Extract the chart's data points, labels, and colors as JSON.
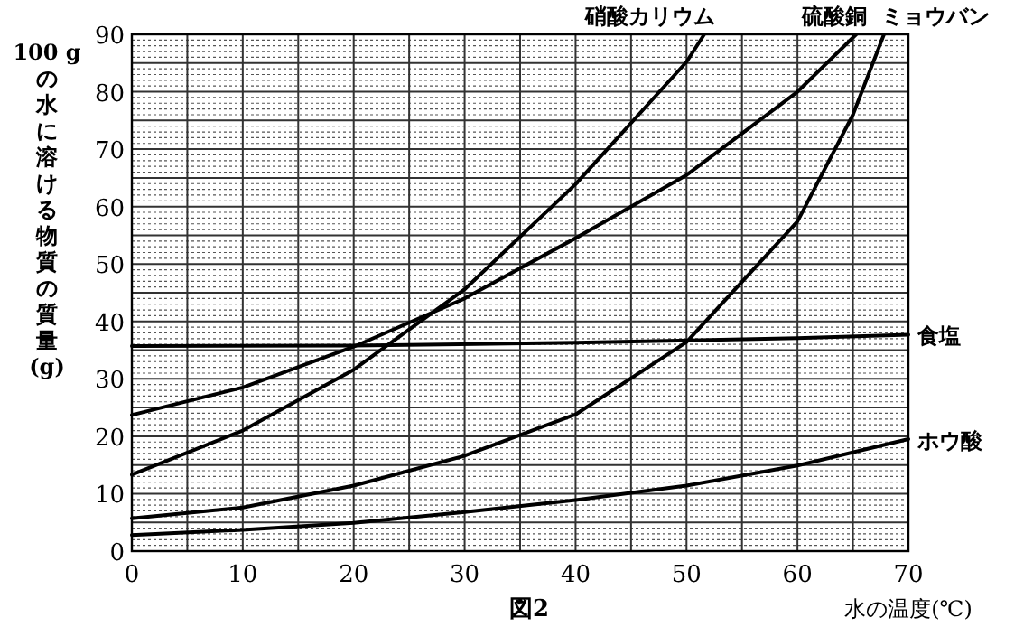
{
  "chart_data": {
    "type": "line",
    "title": "図2",
    "xlabel": "水の温度(℃)",
    "ylabel": "100 g の水に溶ける物質の質量(g)",
    "xlim": [
      0,
      70
    ],
    "ylim": [
      0,
      90
    ],
    "xticks": [
      0,
      {
        "value": 5,
        "label": null
      },
      10,
      {
        "value": 15,
        "label": null
      },
      20,
      {
        "value": 25,
        "label": null
      },
      30,
      {
        "value": 35,
        "label": null
      },
      40,
      {
        "value": 45,
        "label": null
      },
      50,
      {
        "value": 55,
        "label": null
      },
      60,
      {
        "value": 65,
        "label": null
      },
      70
    ],
    "yticks": [
      0,
      {
        "value": 5,
        "label": null
      },
      10,
      {
        "value": 15,
        "label": null
      },
      20,
      {
        "value": 25,
        "label": null
      },
      30,
      {
        "value": 35,
        "label": null
      },
      40,
      {
        "value": 45,
        "label": null
      },
      50,
      {
        "value": 55,
        "label": null
      },
      60,
      {
        "value": 65,
        "label": null
      },
      70,
      {
        "value": 75,
        "label": null
      },
      80,
      {
        "value": 85,
        "label": null
      },
      90
    ],
    "grid": true,
    "marker": "none",
    "line_style": "solid",
    "series": [
      {
        "name": "硝酸カリウム",
        "color": "#000000",
        "x": [
          0,
          10,
          20,
          30,
          40,
          50,
          51.6
        ],
        "values": [
          13.3,
          21,
          31.6,
          45.6,
          63.9,
          85.2,
          90
        ]
      },
      {
        "name": "硫酸銅",
        "color": "#000000",
        "x": [
          0,
          10,
          20,
          30,
          40,
          50,
          60,
          65.3
        ],
        "values": [
          23.7,
          28.5,
          35.6,
          44,
          54.5,
          65.5,
          80,
          90
        ]
      },
      {
        "name": "ミョウバン",
        "color": "#000000",
        "x": [
          0,
          10,
          20,
          30,
          40,
          50,
          60,
          65,
          67.8
        ],
        "values": [
          5.7,
          7.6,
          11.4,
          16.6,
          23.8,
          36.4,
          57.4,
          76,
          90
        ]
      },
      {
        "name": "食塩",
        "color": "#000000",
        "x": [
          0,
          20,
          40,
          60,
          70
        ],
        "values": [
          35.7,
          35.8,
          36.3,
          37.1,
          37.7
        ]
      },
      {
        "name": "ホウ酸",
        "color": "#000000",
        "x": [
          0,
          10,
          20,
          30,
          40,
          50,
          60,
          70
        ],
        "values": [
          2.8,
          3.7,
          4.9,
          6.8,
          8.9,
          11.4,
          14.9,
          19.5
        ]
      }
    ]
  }
}
